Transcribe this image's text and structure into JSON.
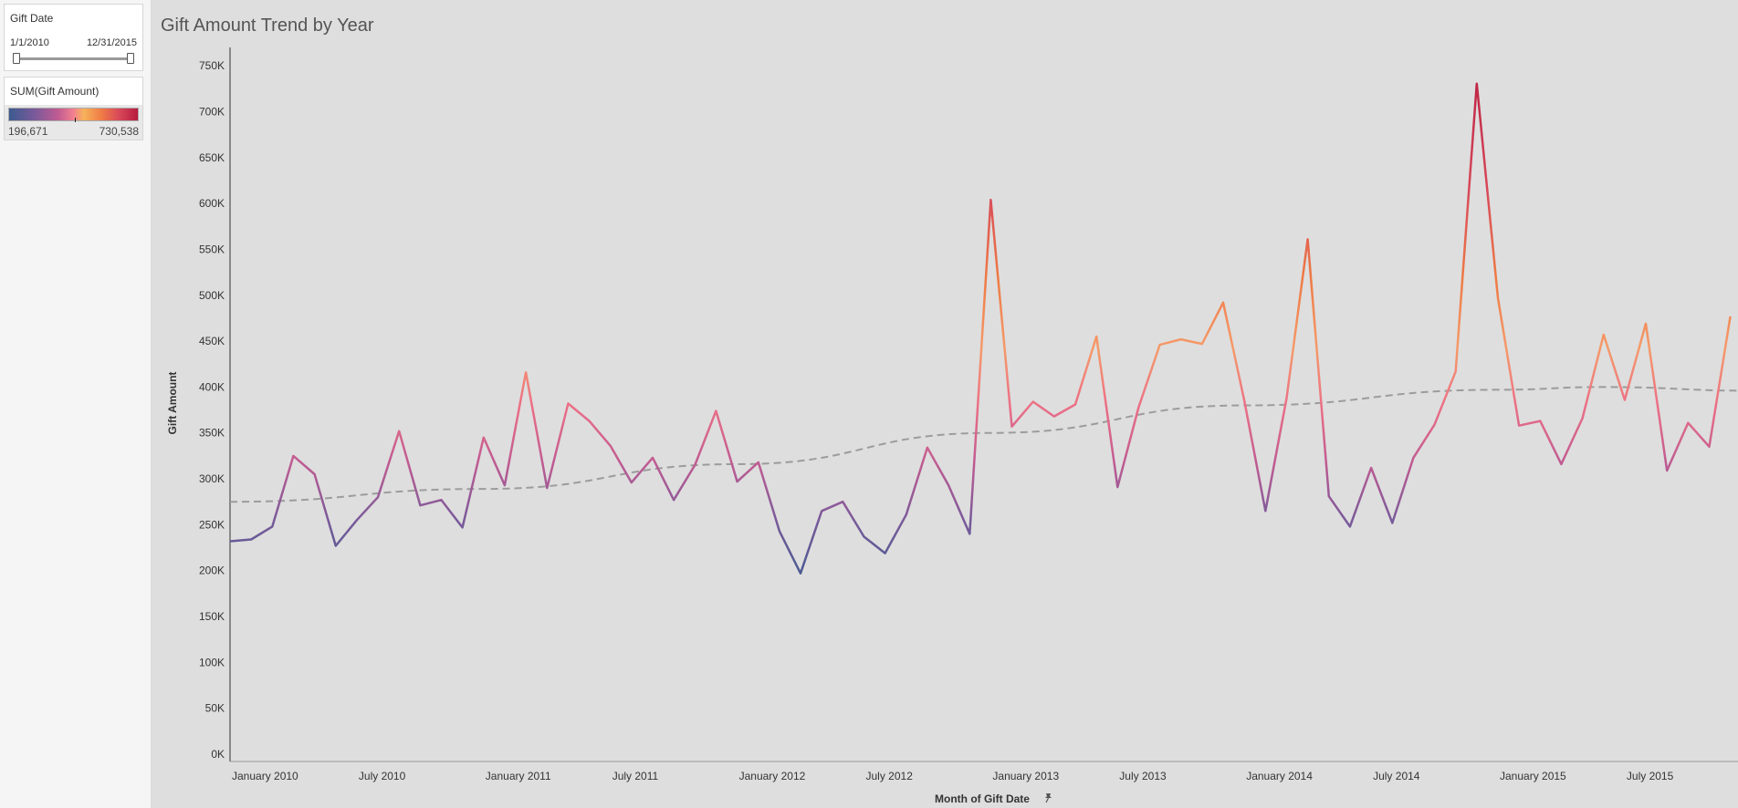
{
  "filters": {
    "gift_date": {
      "title": "Gift Date",
      "start": "1/1/2010",
      "end": "12/31/2015"
    },
    "color_legend": {
      "title": "SUM(Gift Amount)",
      "min": "196,671",
      "max": "730,538",
      "low_color": "#3c5a8f",
      "mid_color": "#f7b25a",
      "high_color": "#b81b3f"
    }
  },
  "chart_data": {
    "type": "line",
    "title": "Gift Amount Trend by Year",
    "xlabel": "Month of Gift Date",
    "ylabel": "Gift Amount",
    "ylim": [
      0,
      770000
    ],
    "y_ticks": [
      "0K",
      "50K",
      "100K",
      "150K",
      "200K",
      "250K",
      "300K",
      "350K",
      "400K",
      "450K",
      "500K",
      "550K",
      "600K",
      "650K",
      "700K",
      "750K"
    ],
    "x_ticks": [
      {
        "label": "January 2010",
        "x": "2010-01"
      },
      {
        "label": "July 2010",
        "x": "2010-07"
      },
      {
        "label": "January 2011",
        "x": "2011-01"
      },
      {
        "label": "July 2011",
        "x": "2011-07"
      },
      {
        "label": "January 2012",
        "x": "2012-01"
      },
      {
        "label": "July 2012",
        "x": "2012-07"
      },
      {
        "label": "January 2013",
        "x": "2013-01"
      },
      {
        "label": "July 2013",
        "x": "2013-07"
      },
      {
        "label": "January 2014",
        "x": "2014-01"
      },
      {
        "label": "July 2014",
        "x": "2014-07"
      },
      {
        "label": "January 2015",
        "x": "2015-01"
      },
      {
        "label": "July 2015",
        "x": "2015-07"
      }
    ],
    "grid": false,
    "series": [
      {
        "x": [
          "2010-01",
          "2010-02",
          "2010-03",
          "2010-04",
          "2010-05",
          "2010-06",
          "2010-07",
          "2010-08",
          "2010-09",
          "2010-10",
          "2010-11",
          "2010-12",
          "2011-01",
          "2011-02",
          "2011-03",
          "2011-04",
          "2011-05",
          "2011-06",
          "2011-07",
          "2011-08",
          "2011-09",
          "2011-10",
          "2011-11",
          "2011-12",
          "2012-01",
          "2012-02",
          "2012-03",
          "2012-04",
          "2012-05",
          "2012-06",
          "2012-07",
          "2012-08",
          "2012-09",
          "2012-10",
          "2012-11",
          "2012-12",
          "2013-01",
          "2013-02",
          "2013-03",
          "2013-04",
          "2013-05",
          "2013-06",
          "2013-07",
          "2013-08",
          "2013-09",
          "2013-10",
          "2013-11",
          "2013-12",
          "2014-01",
          "2014-02",
          "2014-03",
          "2014-04",
          "2014-05",
          "2014-06",
          "2014-07",
          "2014-08",
          "2014-09",
          "2014-10",
          "2014-11",
          "2014-12",
          "2015-01",
          "2015-02",
          "2015-03",
          "2015-04",
          "2015-05",
          "2015-06",
          "2015-07",
          "2015-08",
          "2015-09",
          "2015-10",
          "2015-11",
          "2015-12"
        ],
        "values": [
          232000,
          234000,
          248000,
          325000,
          305000,
          227000,
          255000,
          280000,
          352000,
          271000,
          277000,
          247000,
          345000,
          293000,
          416000,
          290000,
          382000,
          363000,
          336000,
          296000,
          323000,
          277000,
          315000,
          374000,
          297000,
          318000,
          243000,
          197000,
          265000,
          275000,
          237000,
          219000,
          261000,
          334000,
          293000,
          240000,
          604000,
          357000,
          384000,
          368000,
          381000,
          455000,
          291000,
          378000,
          446000,
          452000,
          447000,
          492000,
          385000,
          265000,
          388000,
          561000,
          281000,
          248000,
          312000,
          252000,
          323000,
          359000,
          417000,
          730538,
          497000,
          358000,
          363000,
          316000,
          366000,
          457000,
          386000,
          469000,
          309000,
          361000,
          335000,
          477000
        ]
      }
    ],
    "trend_line": {
      "x": [
        "2010-01",
        "2011-01",
        "2012-01",
        "2013-01",
        "2014-01",
        "2015-01",
        "2015-06",
        "2016-01"
      ],
      "values": [
        275000,
        289000,
        316000,
        350000,
        380000,
        397000,
        400000,
        396000
      ]
    }
  }
}
